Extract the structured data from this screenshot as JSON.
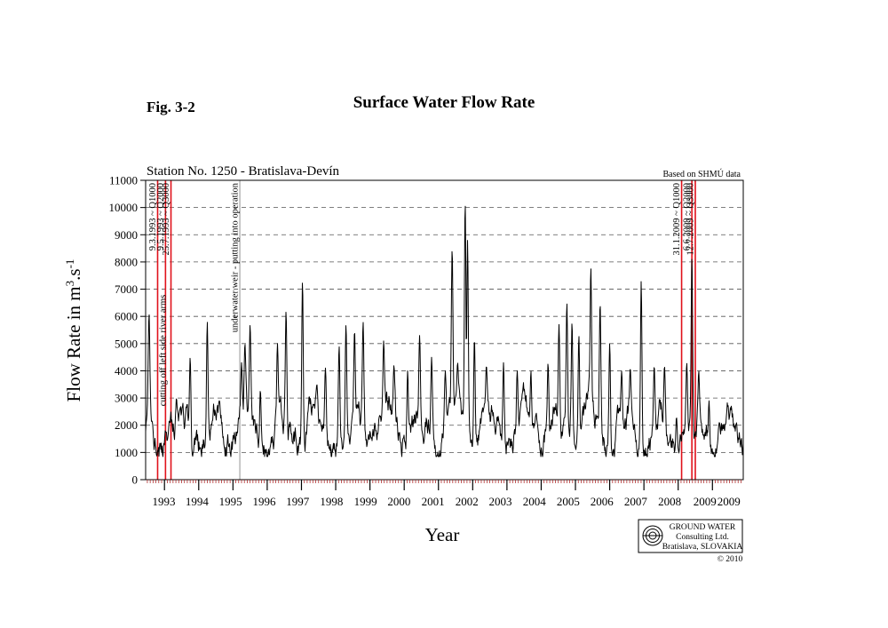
{
  "figure_label": "Fig. 3-2",
  "chart_data": {
    "type": "line",
    "title": "Surface Water Flow Rate",
    "subtitle": "Station No. 1250 - Bratislava-Devín",
    "source_note": "Based on SHMÚ data",
    "xlabel": "Year",
    "ylabel_main": "Flow Rate in m",
    "ylabel_sup3": "3",
    "ylabel_mid": ".s",
    "ylabel_supm1": "-1",
    "ylim": [
      0,
      11000
    ],
    "yticks": [
      0,
      1000,
      2000,
      3000,
      4000,
      5000,
      6000,
      7000,
      8000,
      9000,
      10000,
      11000
    ],
    "ytick_labels": [
      "0",
      "1000",
      "2000",
      "3000",
      "4000",
      "5000",
      "6000",
      "7000",
      "8000",
      "9000",
      "10000",
      "11000"
    ],
    "xlim": [
      1992.45,
      2009.9
    ],
    "year_labels": [
      {
        "label": "1993",
        "center": 1992.98
      },
      {
        "label": "1994",
        "center": 1993.95
      },
      {
        "label": "1995",
        "center": 1994.93
      },
      {
        "label": "1996",
        "center": 1995.91
      },
      {
        "label": "1997",
        "center": 1996.89
      },
      {
        "label": "1998",
        "center": 1997.88
      },
      {
        "label": "1999",
        "center": 1998.87
      },
      {
        "label": "2000",
        "center": 1999.85
      },
      {
        "label": "2001",
        "center": 2000.84
      },
      {
        "label": "2002",
        "center": 2001.83
      },
      {
        "label": "2003",
        "center": 2002.81
      },
      {
        "label": "2004",
        "center": 2003.8
      },
      {
        "label": "2005",
        "center": 2004.79
      },
      {
        "label": "2006",
        "center": 2005.77
      },
      {
        "label": "2007",
        "center": 2006.76
      },
      {
        "label": "2008",
        "center": 2007.75
      },
      {
        "label": "2009",
        "center": 2008.78
      },
      {
        "label": "2009",
        "center": 2009.48
      }
    ],
    "grid": "horizontal dashed",
    "baseline_range": [
      900,
      2800
    ],
    "series": [
      {
        "color": "#000000",
        "peaks": [
          {
            "year": 1992.55,
            "value": 6100
          },
          {
            "year": 1993.35,
            "value": 3000
          },
          {
            "year": 1993.75,
            "value": 4500
          },
          {
            "year": 1994.25,
            "value": 5800
          },
          {
            "year": 1994.6,
            "value": 2900
          },
          {
            "year": 1995.25,
            "value": 4300
          },
          {
            "year": 1995.35,
            "value": 5000
          },
          {
            "year": 1995.5,
            "value": 5700
          },
          {
            "year": 1995.8,
            "value": 3300
          },
          {
            "year": 1996.3,
            "value": 5000
          },
          {
            "year": 1996.55,
            "value": 6200
          },
          {
            "year": 1997.03,
            "value": 7300
          },
          {
            "year": 1997.45,
            "value": 3500
          },
          {
            "year": 1997.7,
            "value": 4100
          },
          {
            "year": 1998.1,
            "value": 4900
          },
          {
            "year": 1998.3,
            "value": 5700
          },
          {
            "year": 1998.55,
            "value": 5500
          },
          {
            "year": 1998.8,
            "value": 5800
          },
          {
            "year": 1999.4,
            "value": 5100
          },
          {
            "year": 1999.7,
            "value": 4200
          },
          {
            "year": 2000.1,
            "value": 4000
          },
          {
            "year": 2000.45,
            "value": 5300
          },
          {
            "year": 2000.8,
            "value": 4500
          },
          {
            "year": 2001.2,
            "value": 4000
          },
          {
            "year": 2001.4,
            "value": 8500
          },
          {
            "year": 2001.56,
            "value": 4300
          },
          {
            "year": 2001.78,
            "value": 10200
          },
          {
            "year": 2001.85,
            "value": 8800
          },
          {
            "year": 2002.05,
            "value": 5200
          },
          {
            "year": 2002.4,
            "value": 4200
          },
          {
            "year": 2002.9,
            "value": 4300
          },
          {
            "year": 2003.3,
            "value": 4000
          },
          {
            "year": 2003.7,
            "value": 4000
          },
          {
            "year": 2004.2,
            "value": 4300
          },
          {
            "year": 2004.52,
            "value": 5700
          },
          {
            "year": 2004.75,
            "value": 6500
          },
          {
            "year": 2004.9,
            "value": 5800
          },
          {
            "year": 2005.1,
            "value": 5300
          },
          {
            "year": 2005.45,
            "value": 7800
          },
          {
            "year": 2005.72,
            "value": 6500
          },
          {
            "year": 2006.0,
            "value": 5000
          },
          {
            "year": 2006.35,
            "value": 4000
          },
          {
            "year": 2006.6,
            "value": 4100
          },
          {
            "year": 2006.92,
            "value": 7300
          },
          {
            "year": 2007.3,
            "value": 4200
          },
          {
            "year": 2007.6,
            "value": 4200
          },
          {
            "year": 2007.95,
            "value": 2300
          },
          {
            "year": 2008.25,
            "value": 4300
          },
          {
            "year": 2008.4,
            "value": 8200
          },
          {
            "year": 2008.6,
            "value": 4000
          },
          {
            "year": 2008.9,
            "value": 2900
          },
          {
            "year": 2009.2,
            "value": 2100
          }
        ]
      }
    ],
    "events": [
      {
        "year": 1992.8,
        "label": "9.3.1993 ~ Q1000",
        "color": "#e0121b"
      },
      {
        "year": 1993.03,
        "label": "9.5.1993 ~ Q2000",
        "color": "#e0121b"
      },
      {
        "year": 1993.19,
        "label": "25.7.1993 ~ Q3000",
        "color": "#e0121b"
      },
      {
        "year": 2008.1,
        "label": "31.1.2009 ~ Q1000",
        "color": "#e0121b"
      },
      {
        "year": 2008.4,
        "label": "6.6.2009 ~ Q2000",
        "color": "#e0121b"
      },
      {
        "year": 2008.5,
        "label": "12.7.2009 ~ Q3000",
        "color": "#e0121b"
      }
    ],
    "markers": [
      {
        "year": 1992.8,
        "label": "cutting off left side river arms",
        "color": "#e0121b"
      },
      {
        "year": 1995.2,
        "label": "underwater weir - putting into operation",
        "color": "#888888"
      }
    ]
  },
  "logo": {
    "line1": "GROUND WATER",
    "line2": "Consulting Ltd.",
    "line3": "Bratislava, SLOVAKIA",
    "copyright": "© 2010"
  }
}
